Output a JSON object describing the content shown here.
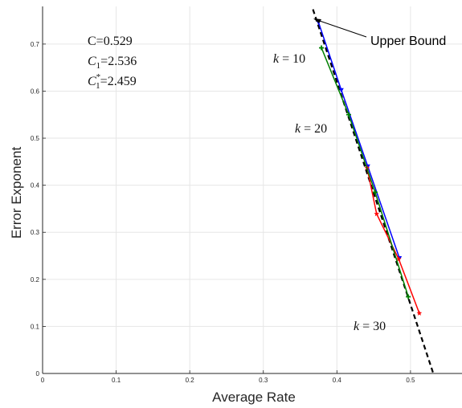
{
  "chart_data": {
    "type": "line",
    "title": "",
    "xlabel": "Average Rate",
    "ylabel": "Error Exponent",
    "xlim": [
      0,
      0.57
    ],
    "ylim": [
      0,
      0.78
    ],
    "xticks": [
      "0",
      "0.1",
      "0.2",
      "0.3",
      "0.4",
      "0.5"
    ],
    "yticks": [
      "0",
      "0.1",
      "0.2",
      "0.3",
      "0.4",
      "0.5",
      "0.6",
      "0.7"
    ],
    "grid": true,
    "colors": {
      "blue": "#0000ff",
      "red": "#ff0000",
      "green": "#008000",
      "bound": "#000000"
    },
    "series": [
      {
        "color": "blue",
        "style": "solid",
        "marker": "triangle-down",
        "x": [
          0.375,
          0.406,
          0.442,
          0.485
        ],
        "y": [
          0.746,
          0.602,
          0.44,
          0.245
        ]
      },
      {
        "color": "red",
        "style": "solid",
        "marker": "star",
        "x": [
          0.441,
          0.454,
          0.484,
          0.512
        ],
        "y": [
          0.437,
          0.339,
          0.243,
          0.128
        ]
      },
      {
        "color": "green",
        "style": "solid",
        "marker": "plus",
        "x": [
          0.379,
          0.416,
          0.452,
          0.497
        ],
        "y": [
          0.692,
          0.55,
          0.385,
          0.163
        ]
      },
      {
        "color": "bound",
        "style": "dashed",
        "marker": "none",
        "x": [
          0.364,
          0.531
        ],
        "y": [
          0.79,
          0.0
        ]
      }
    ],
    "annotations": {
      "upper_bound": "Upper Bound",
      "k10": "10",
      "k20": "20",
      "k30": "30",
      "k_var": "k",
      "equals": " = ",
      "c_line": "C=0.529",
      "c1_value": "=2.536",
      "c1s_value": "=2.459",
      "c_letter": "C",
      "sub1": "1",
      "star": "*"
    }
  }
}
